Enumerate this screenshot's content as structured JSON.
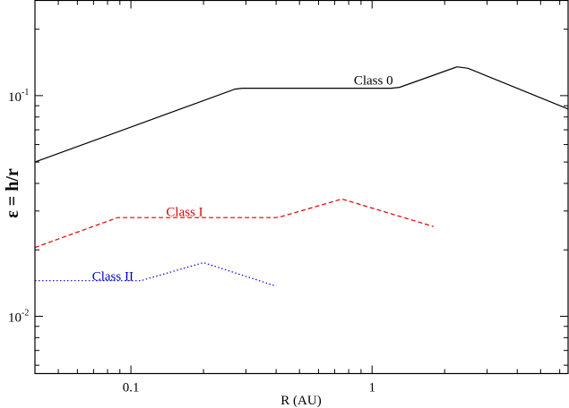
{
  "chart_data": {
    "type": "line",
    "title": "",
    "xlabel": "R (AU)",
    "ylabel": "ε = h/r",
    "xscale": "log",
    "yscale": "log",
    "xlim": [
      0.04,
      6.5
    ],
    "ylim": [
      0.0055,
      0.27
    ],
    "x_ticks": [
      {
        "value": 0.1,
        "label": "0.1"
      },
      {
        "value": 1,
        "label": "1"
      }
    ],
    "y_ticks": [
      {
        "value": 0.01,
        "base": "10",
        "exp": "-2"
      },
      {
        "value": 0.1,
        "base": "10",
        "exp": "-1"
      }
    ],
    "grid": false,
    "series": [
      {
        "name": "Class 0",
        "color": "#000000",
        "dash": "solid",
        "label_at": [
          0.84,
          0.112
        ],
        "points": [
          [
            0.04,
            0.05
          ],
          [
            0.27,
            0.107
          ],
          [
            0.29,
            0.108
          ],
          [
            1.2,
            0.108
          ],
          [
            1.3,
            0.109
          ],
          [
            2.25,
            0.135
          ],
          [
            2.5,
            0.133
          ],
          [
            6.5,
            0.087
          ]
        ]
      },
      {
        "name": "Class I",
        "color": "#dd0000",
        "dash": "dashed",
        "label_at": [
          0.14,
          0.0285
        ],
        "points": [
          [
            0.04,
            0.0205
          ],
          [
            0.088,
            0.028
          ],
          [
            0.09,
            0.028
          ],
          [
            0.4,
            0.028
          ],
          [
            0.42,
            0.0283
          ],
          [
            0.75,
            0.034
          ],
          [
            1.8,
            0.0255
          ]
        ]
      },
      {
        "name": "Class II",
        "color": "#0000cc",
        "dash": "dotted",
        "label_at": [
          0.069,
          0.0145
        ],
        "points": [
          [
            0.04,
            0.0145
          ],
          [
            0.11,
            0.0145
          ],
          [
            0.2,
            0.0175
          ],
          [
            0.4,
            0.0137
          ]
        ]
      }
    ]
  }
}
